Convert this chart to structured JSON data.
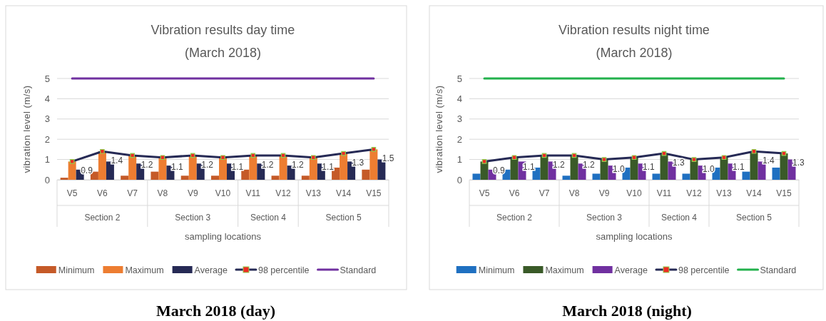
{
  "chart_data": [
    {
      "type": "bar",
      "title": "Vibration results day time\n(March 2018)",
      "xlabel": "sampling locations",
      "ylabel": "vibration level (m/s)",
      "categories": [
        "V5",
        "V6",
        "V7",
        "V8",
        "V9",
        "V10",
        "V11",
        "V12",
        "V13",
        "V14",
        "V15"
      ],
      "series": [
        {
          "name": "Minimum",
          "color": "#c55a28",
          "values": [
            0.1,
            0.4,
            0.2,
            0.4,
            0.2,
            0.2,
            0.5,
            0.2,
            0.2,
            0.6,
            0.5
          ]
        },
        {
          "name": "Maximum",
          "color": "#ed7d31",
          "values": [
            0.9,
            1.4,
            1.2,
            1.1,
            1.2,
            1.1,
            1.2,
            1.2,
            1.1,
            1.3,
            1.5
          ]
        },
        {
          "name": "Average",
          "color": "#262a55",
          "values": [
            0.5,
            0.9,
            0.8,
            0.7,
            0.8,
            0.8,
            0.8,
            0.7,
            0.8,
            0.9,
            1.0
          ]
        },
        {
          "name": "98 percentile",
          "type": "line",
          "marker": "square",
          "color": "#262a55",
          "values": [
            0.9,
            1.4,
            1.2,
            1.1,
            1.2,
            1.1,
            1.2,
            1.2,
            1.1,
            1.3,
            1.5
          ],
          "value_labels": [
            "0.9",
            "1.4",
            "1.2",
            "1.1",
            "1.2",
            "1.1",
            "1.2",
            "1.2",
            "1.1",
            "1.3",
            "1.5"
          ]
        },
        {
          "name": "Standard",
          "type": "line",
          "marker": "none",
          "color": "#7030a0",
          "values": [
            5,
            5,
            5,
            5,
            5,
            5,
            5,
            5,
            5,
            5,
            5
          ]
        }
      ],
      "ylim": [
        0,
        5
      ],
      "yticks": [
        0,
        1,
        2,
        3,
        4,
        5
      ],
      "grid": "y",
      "legend": "bottom",
      "annotations": [
        "Section 2",
        "Section 3",
        "Section 4",
        "Section 5",
        "March 2018 (day)"
      ]
    },
    {
      "type": "bar",
      "title": "Vibration results night time\n(March 2018)",
      "xlabel": "sampling locations",
      "ylabel": "vibration level (m/s)",
      "categories": [
        "V5",
        "V6",
        "V7",
        "V8",
        "V9",
        "V10",
        "V11",
        "V12",
        "V13",
        "V14",
        "V15"
      ],
      "series": [
        {
          "name": "Minimum",
          "color": "#1f70c1",
          "values": [
            0.3,
            0.5,
            0.6,
            0.2,
            0.3,
            0.6,
            0.3,
            0.3,
            0.6,
            0.4,
            0.6
          ]
        },
        {
          "name": "Maximum",
          "color": "#3a5a28",
          "values": [
            0.9,
            1.1,
            1.2,
            1.2,
            1.0,
            1.1,
            1.3,
            1.0,
            1.1,
            1.4,
            1.3
          ]
        },
        {
          "name": "Average",
          "color": "#7030a0",
          "values": [
            0.5,
            0.9,
            0.9,
            0.8,
            0.7,
            0.8,
            0.9,
            0.7,
            0.8,
            0.9,
            1.0
          ]
        },
        {
          "name": "98 percentile",
          "type": "line",
          "marker": "square",
          "color": "#262a55",
          "values": [
            0.9,
            1.1,
            1.2,
            1.2,
            1.0,
            1.1,
            1.3,
            1.0,
            1.1,
            1.4,
            1.3
          ],
          "value_labels": [
            "0.9",
            "1.1",
            "1.2",
            "1.2",
            "1.0",
            "1.1",
            "1.3",
            "1.0",
            "1.1",
            "1.4",
            "1.3"
          ]
        },
        {
          "name": "Standard",
          "type": "line",
          "marker": "none",
          "color": "#22b14c",
          "values": [
            5,
            5,
            5,
            5,
            5,
            5,
            5,
            5,
            5,
            5,
            5
          ]
        }
      ],
      "ylim": [
        0,
        5
      ],
      "yticks": [
        0,
        1,
        2,
        3,
        4,
        5
      ],
      "grid": "y",
      "legend": "bottom",
      "annotations": [
        "Section 2",
        "Section 3",
        "Section 4",
        "Section 5",
        "March 2018 (night)"
      ]
    }
  ]
}
